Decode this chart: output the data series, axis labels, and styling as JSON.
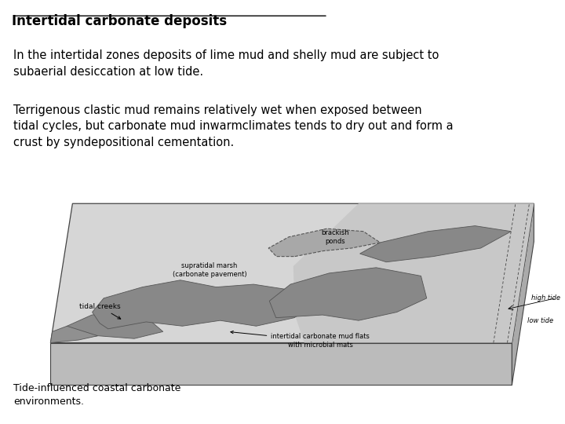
{
  "title": "Intertidal carbonate deposits",
  "para1": "In the intertidal zones deposits of lime mud and shelly mud are subject to\nsubaerial desiccation at low tide.",
  "para2": "Terrigenous clastic mud remains relatively wet when exposed between\ntidal cycles, but carbonate mud inwarmclimates tends to dry out and form a\ncrust by syndepositional cementation.",
  "caption": "Tide-influenced coastal carbonate\nenvironments.",
  "bg_color": "#ffffff",
  "text_color": "#000000",
  "label_tidal_creeks": "tidal creeks",
  "label_supratidal": "supratidal marsh\n(carbonate pavement)",
  "label_brackish": "brackish\nponds",
  "label_high_tide": "high tide",
  "label_low_tide": "low tide",
  "label_intertidal": "intertidal carbonate mud flats\nwith microbial mats"
}
